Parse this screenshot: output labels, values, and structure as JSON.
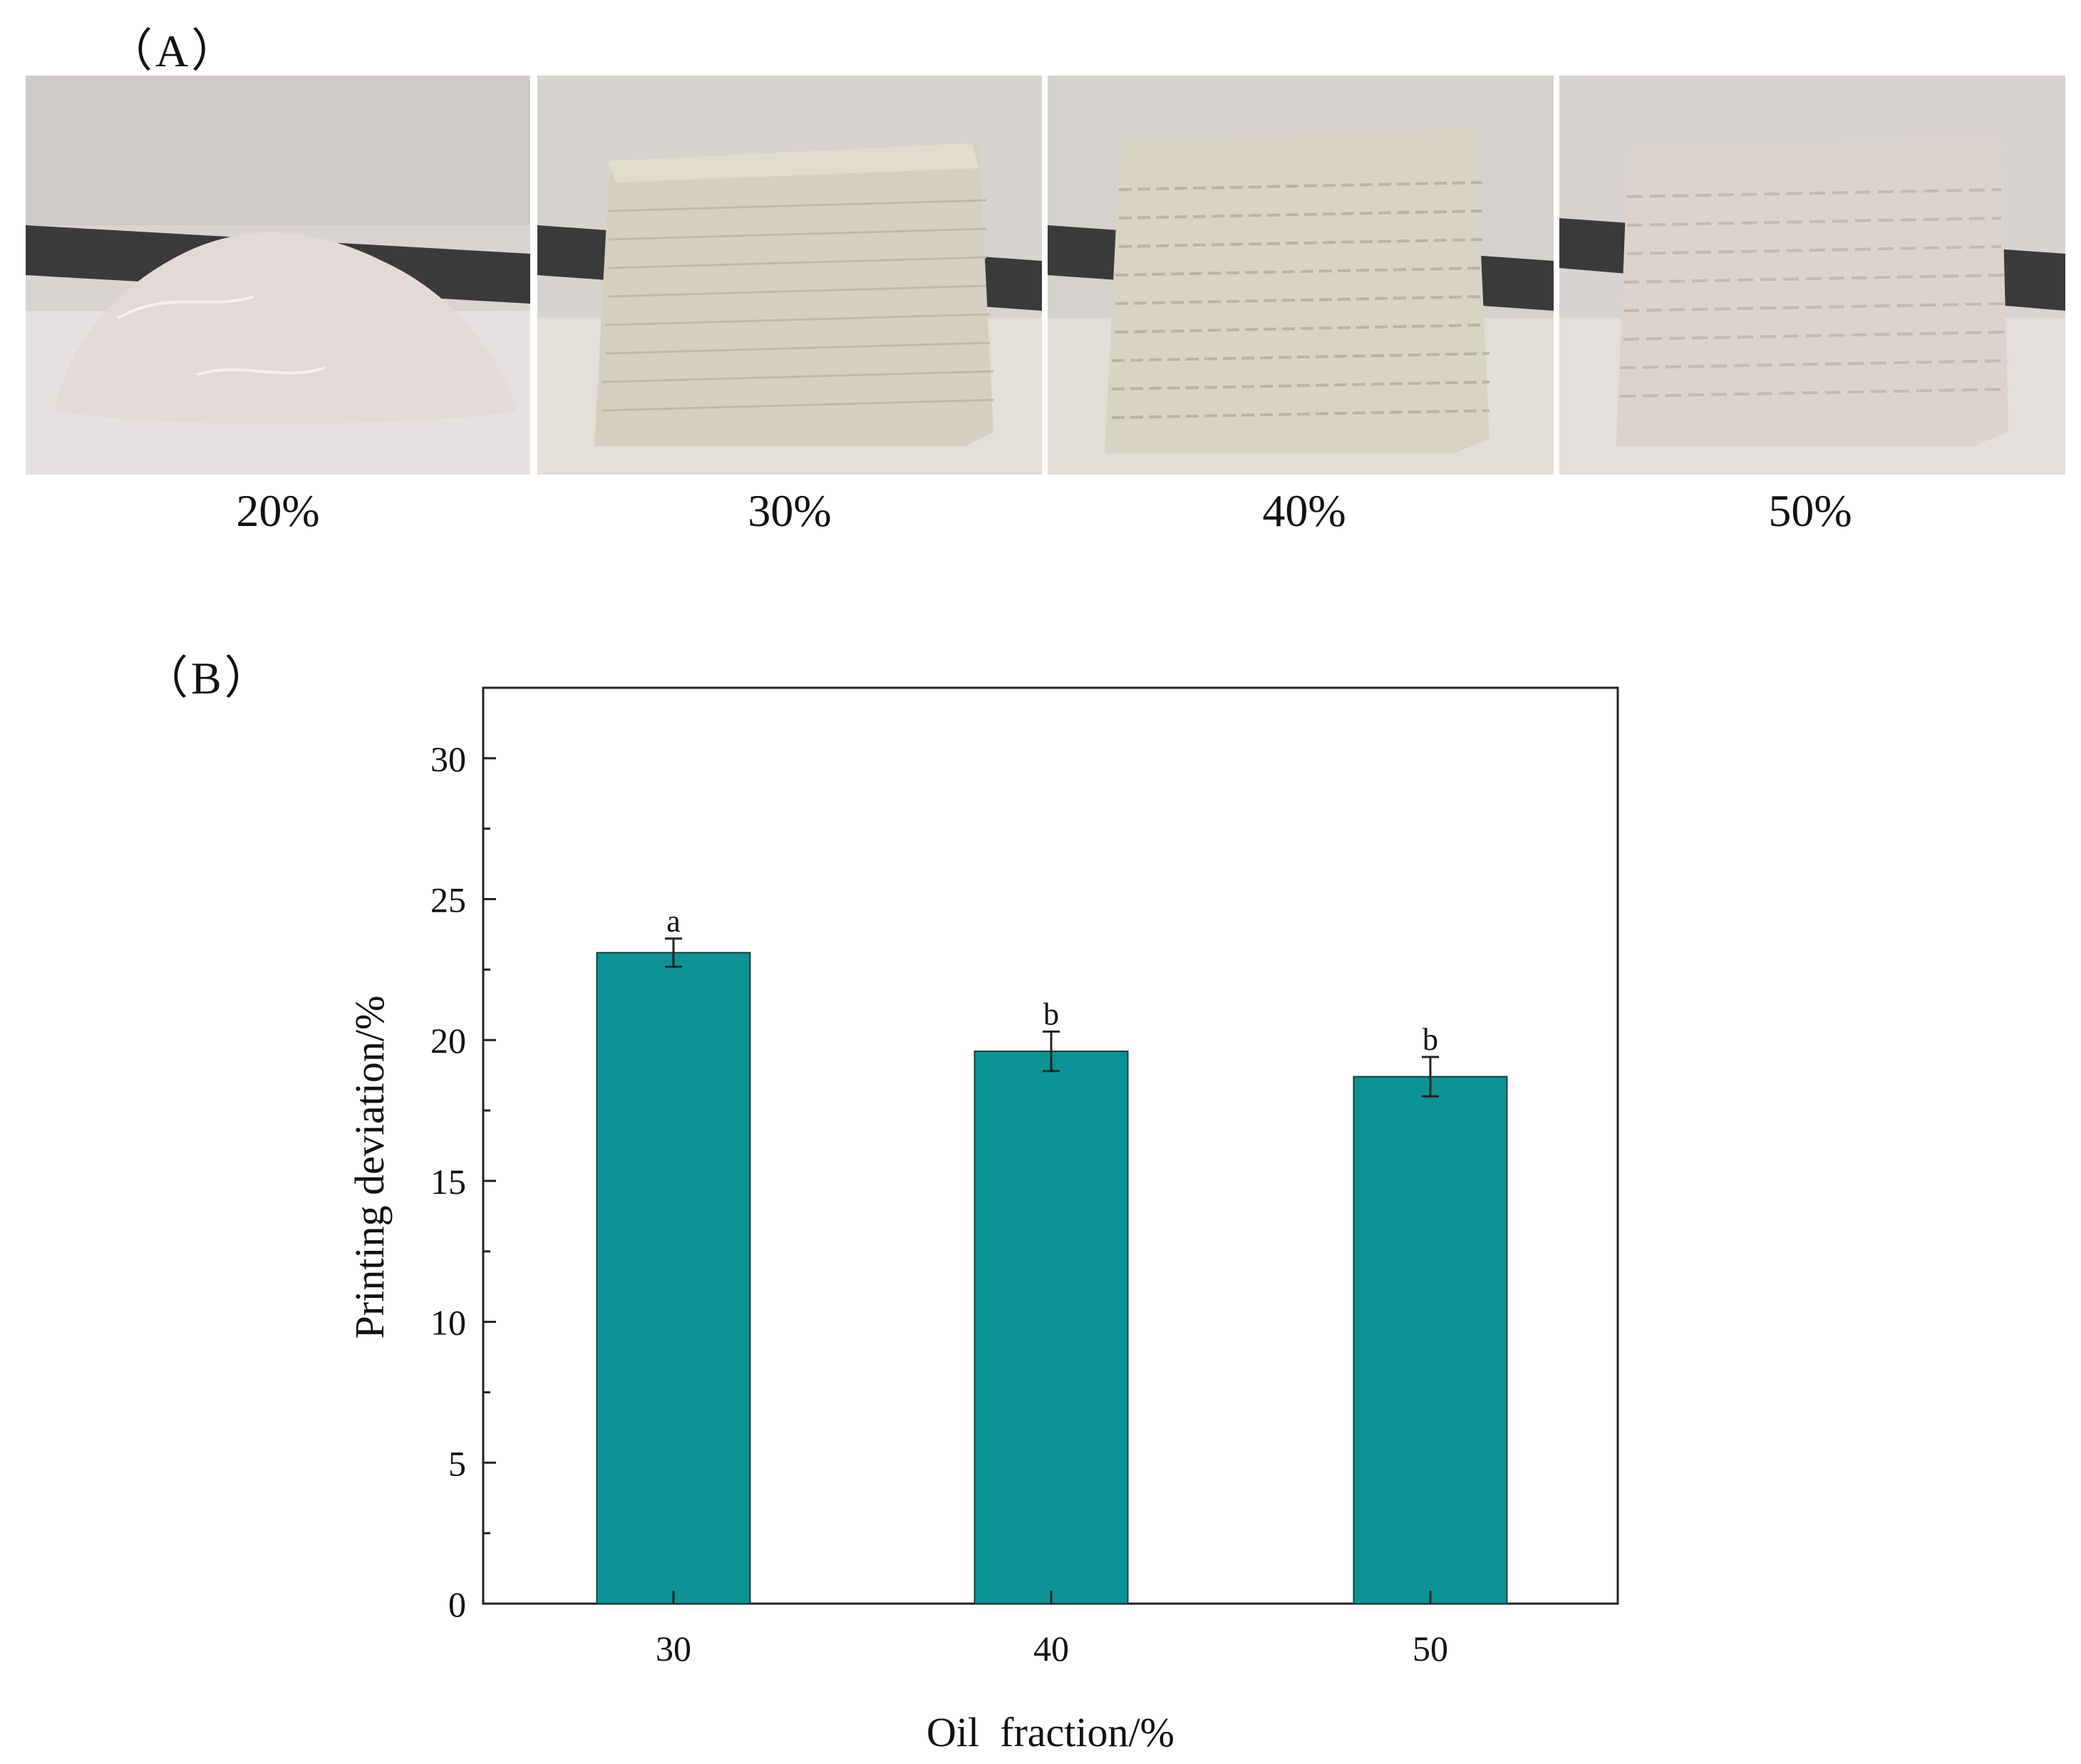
{
  "panel_a": {
    "label": "（A）",
    "photos": [
      {
        "caption": "20%",
        "kind": "puddle"
      },
      {
        "caption": "30%",
        "kind": "cube"
      },
      {
        "caption": "40%",
        "kind": "cube"
      },
      {
        "caption": "50%",
        "kind": "cube"
      }
    ]
  },
  "panel_b": {
    "label": "（B）"
  },
  "chart_data": {
    "type": "bar",
    "categories": [
      "30",
      "40",
      "50"
    ],
    "values": [
      23.1,
      19.6,
      18.7
    ],
    "errors": [
      0.5,
      0.7,
      0.7
    ],
    "significance": [
      "a",
      "b",
      "b"
    ],
    "xlabel": "Oil  fraction/%",
    "ylabel": "Printing deviation/%",
    "ylim": [
      0,
      32.5
    ],
    "yticks": [
      0,
      5,
      10,
      15,
      20,
      25,
      30
    ],
    "bar_color": "#0c9396",
    "grid": false
  }
}
